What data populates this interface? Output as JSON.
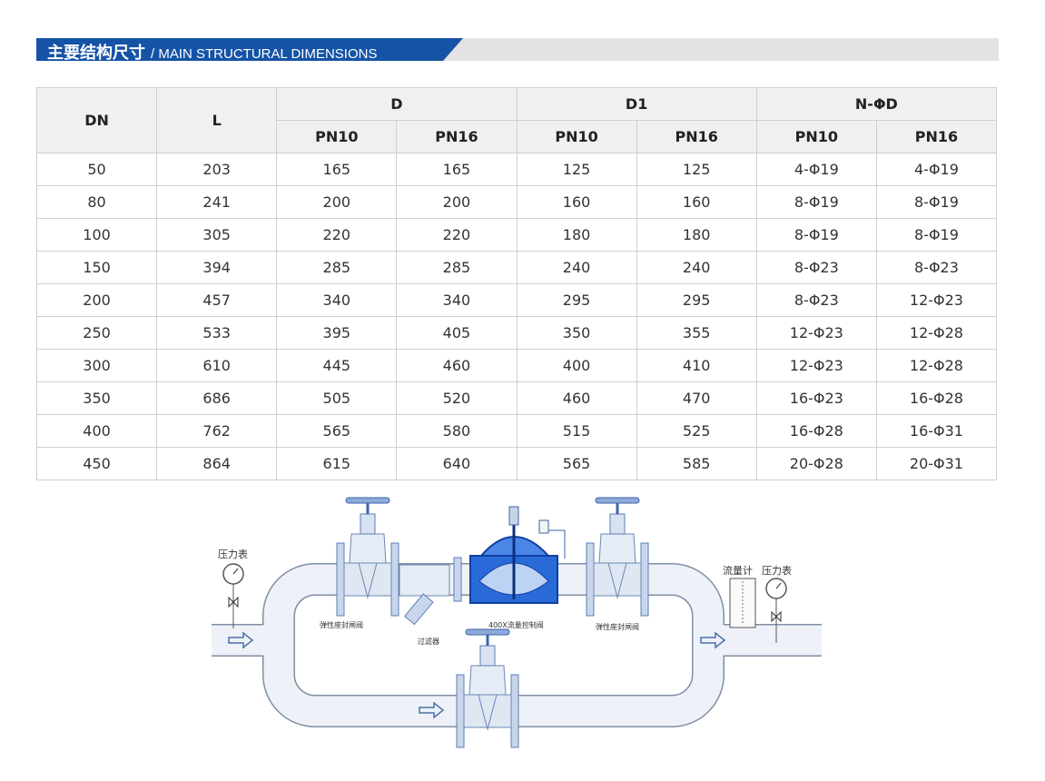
{
  "banner": {
    "title_cn": "主要结构尺寸",
    "title_en": "/ MAIN STRUCTURAL DIMENSIONS"
  },
  "table": {
    "headers": {
      "dn": "DN",
      "l": "L",
      "d": "D",
      "d1": "D1",
      "nd": "N-ΦD",
      "pn10": "PN10",
      "pn16": "PN16"
    },
    "rows": [
      [
        "50",
        "203",
        "165",
        "165",
        "125",
        "125",
        "4-Φ19",
        "4-Φ19"
      ],
      [
        "80",
        "241",
        "200",
        "200",
        "160",
        "160",
        "8-Φ19",
        "8-Φ19"
      ],
      [
        "100",
        "305",
        "220",
        "220",
        "180",
        "180",
        "8-Φ19",
        "8-Φ19"
      ],
      [
        "150",
        "394",
        "285",
        "285",
        "240",
        "240",
        "8-Φ23",
        "8-Φ23"
      ],
      [
        "200",
        "457",
        "340",
        "340",
        "295",
        "295",
        "8-Φ23",
        "12-Φ23"
      ],
      [
        "250",
        "533",
        "395",
        "405",
        "350",
        "355",
        "12-Φ23",
        "12-Φ28"
      ],
      [
        "300",
        "610",
        "445",
        "460",
        "400",
        "410",
        "12-Φ23",
        "12-Φ28"
      ],
      [
        "350",
        "686",
        "505",
        "520",
        "460",
        "470",
        "16-Φ23",
        "16-Φ28"
      ],
      [
        "400",
        "762",
        "565",
        "580",
        "515",
        "525",
        "16-Φ28",
        "16-Φ31"
      ],
      [
        "450",
        "864",
        "615",
        "640",
        "565",
        "585",
        "20-Φ28",
        "20-Φ31"
      ]
    ]
  },
  "diagram": {
    "pressure_gauge_left": "压力表",
    "gate_valve_left": "弹性座封闸阀",
    "strainer": "过滤器",
    "control_valve": "400X流量控制阀",
    "gate_valve_right": "弹性座封闸阀",
    "flow_meter": "流量计",
    "pressure_gauge_right": "压力表"
  },
  "colors": {
    "brand_blue": "#1553a6",
    "valve_blue": "#1f5fd0",
    "pipe": "#eef2f8"
  }
}
